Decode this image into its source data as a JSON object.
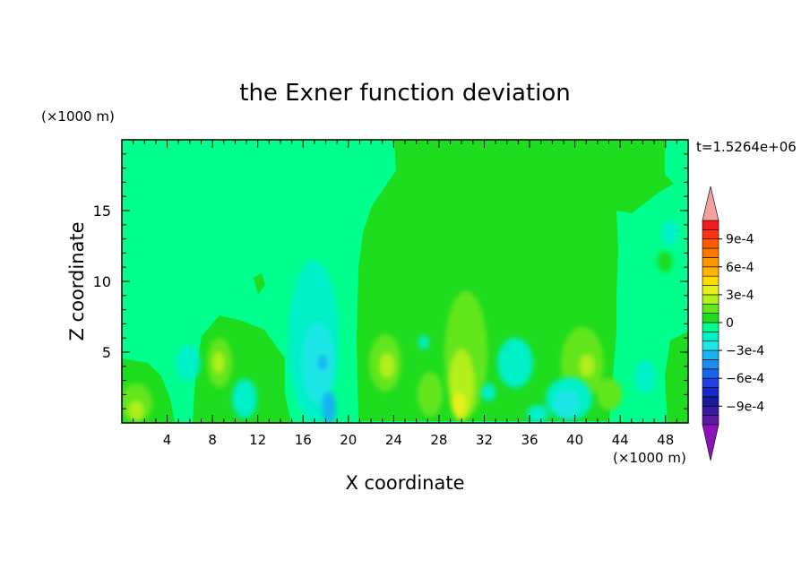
{
  "chart_data": {
    "type": "heatmap",
    "title": "the Exner function deviation",
    "xlabel": "X coordinate",
    "ylabel": "Z coordinate",
    "x_unit": "(×1000 m)",
    "y_unit": "(×1000 m)",
    "time_label": "t=1.5264e+06",
    "xlim": [
      0,
      50
    ],
    "ylim": [
      0,
      20
    ],
    "x_ticks": [
      "4",
      "8",
      "12",
      "16",
      "20",
      "24",
      "28",
      "32",
      "36",
      "40",
      "44",
      "48"
    ],
    "y_ticks": [
      "5",
      "10",
      "15"
    ],
    "colorbar": {
      "levels": [
        -0.0011,
        -0.001,
        -0.0009,
        -0.0008,
        -0.0007,
        -0.0006,
        -0.0005,
        -0.0004,
        -0.0003,
        -0.0002,
        -0.0001,
        0,
        0.0001,
        0.0002,
        0.0003,
        0.0004,
        0.0005,
        0.0006,
        0.0007,
        0.0008,
        0.0009,
        0.001
      ],
      "colors": [
        "#5a1aa0",
        "#3a1aa0",
        "#1a1a96",
        "#1a28c8",
        "#2240e0",
        "#1a64e8",
        "#1e8cf0",
        "#19b4f0",
        "#1ee6e6",
        "#00f0c8",
        "#00ff8c",
        "#1edc1e",
        "#64e61e",
        "#b4f01e",
        "#e6f01e",
        "#ffdc00",
        "#ffb400",
        "#ff9600",
        "#ff7800",
        "#ff5a00",
        "#ff3214",
        "#f01e1e"
      ],
      "under_color": "#8c14b4",
      "over_color": "#f5a0a0",
      "tick_labels": [
        "9e-4",
        "6e-4",
        "3e-4",
        "0",
        "−3e-4",
        "−6e-4",
        "−9e-4"
      ]
    },
    "regions": [
      {
        "value": 5e-05,
        "desc": "green block upper-middle/right",
        "x": [
          20,
          48
        ],
        "z": [
          4,
          20
        ]
      },
      {
        "value": -5e-05,
        "desc": "teal background left and far right"
      },
      {
        "value": -0.00025,
        "desc": "cyan anomaly near x=18",
        "x": [
          15,
          20
        ],
        "z": [
          0,
          11
        ]
      },
      {
        "value": -0.00045,
        "desc": "blue core near x=18,z=1",
        "x": [
          17,
          19
        ],
        "z": [
          0,
          2
        ]
      },
      {
        "value": 0.00032,
        "desc": "yellow-green column near x=30",
        "x": [
          27,
          33
        ],
        "z": [
          0,
          9
        ]
      },
      {
        "value": 0.00038,
        "desc": "yellow core near x=30,z=1",
        "x": [
          29,
          31
        ],
        "z": [
          0,
          2
        ]
      },
      {
        "value": 0.00025,
        "desc": "light green near x=24",
        "x": [
          22,
          26
        ],
        "z": [
          2,
          7
        ]
      },
      {
        "value": 0.0002,
        "desc": "light green near x=40-44",
        "x": [
          39,
          45
        ],
        "z": [
          1,
          7
        ]
      },
      {
        "value": -0.0002,
        "desc": "cyan near x=40,z=2",
        "x": [
          38,
          42
        ],
        "z": [
          0,
          3
        ]
      }
    ]
  }
}
